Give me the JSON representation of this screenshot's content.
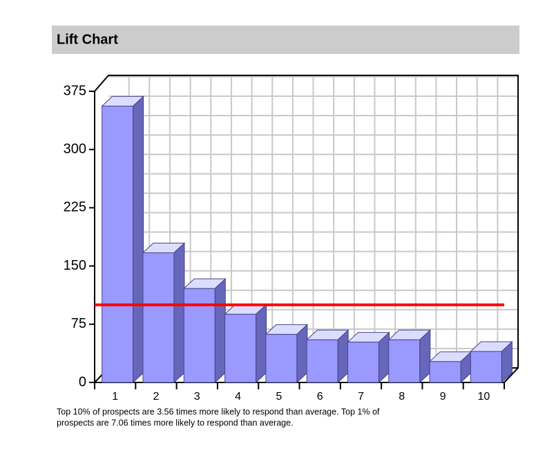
{
  "chart_data": {
    "type": "bar3d",
    "title": "Lift Chart",
    "categories": [
      "1",
      "2",
      "3",
      "4",
      "5",
      "6",
      "7",
      "8",
      "9",
      "10"
    ],
    "values": [
      356,
      167,
      121,
      88,
      62,
      55,
      52,
      55,
      27,
      40
    ],
    "color": "#9999ff",
    "ylim": [
      0,
      375
    ],
    "yticks": [
      0,
      75,
      150,
      225,
      300,
      375
    ],
    "ygrid": [
      0,
      25,
      50,
      75,
      100,
      125,
      150,
      175,
      200,
      225,
      250,
      275,
      300,
      325,
      350,
      375
    ],
    "grid": true,
    "reference_line": {
      "value": 100,
      "color": "#ff0000"
    },
    "note_lines": [
      "Top 10% of prospects are 3.56 times more likely to respond than average.  Top 1% of",
      "prospects are 7.06 times more likely to respond than average."
    ]
  }
}
